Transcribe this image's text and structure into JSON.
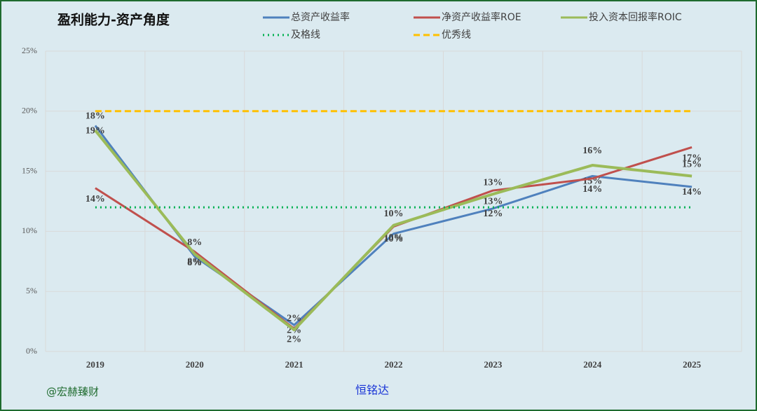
{
  "chart_data": {
    "type": "line",
    "title": "盈利能力-资产角度",
    "categories": [
      "2019",
      "2020",
      "2021",
      "2022",
      "2023",
      "2024",
      "2025"
    ],
    "series": [
      {
        "name": "总资产收益率",
        "color": "#4f81bd",
        "values": [
          18.8,
          7.9,
          2.2,
          9.8,
          11.9,
          14.6,
          13.7
        ],
        "value_labels": [
          "19%",
          "8%",
          "2%",
          "10%",
          "12%",
          "15%",
          "14%"
        ]
      },
      {
        "name": "净资产收益率ROE",
        "color": "#c0504d",
        "values": [
          13.6,
          8.3,
          1.9,
          10.4,
          13.4,
          14.4,
          17.0
        ],
        "value_labels": [
          "14%",
          "8%",
          "2%",
          "10%",
          "13%",
          "14%",
          "17%"
        ]
      },
      {
        "name": "投入资本回报率ROIC",
        "color": "#9bbb59",
        "values": [
          18.4,
          8.1,
          1.8,
          10.5,
          13.1,
          15.5,
          14.6
        ],
        "value_labels": [
          "18%",
          "8%",
          "2%",
          "10%",
          "13%",
          "16%",
          "15%"
        ]
      },
      {
        "name": "及格线",
        "color": "#00b050",
        "style": "dotted",
        "values": [
          12,
          12,
          12,
          12,
          12,
          12,
          12
        ]
      },
      {
        "name": "优秀线",
        "color": "#ffc000",
        "style": "dashed",
        "values": [
          20,
          20,
          20,
          20,
          20,
          20,
          20
        ]
      }
    ],
    "ylim": [
      0,
      25
    ],
    "yticks": [
      {
        "value": 0,
        "label": "0%"
      },
      {
        "value": 5,
        "label": "5%"
      },
      {
        "value": 10,
        "label": "10%"
      },
      {
        "value": 15,
        "label": "15%"
      },
      {
        "value": 20,
        "label": "20%"
      },
      {
        "value": 25,
        "label": "25%"
      }
    ],
    "grid": true,
    "watermark": "@宏赫臻财",
    "company": "恒铭达"
  }
}
